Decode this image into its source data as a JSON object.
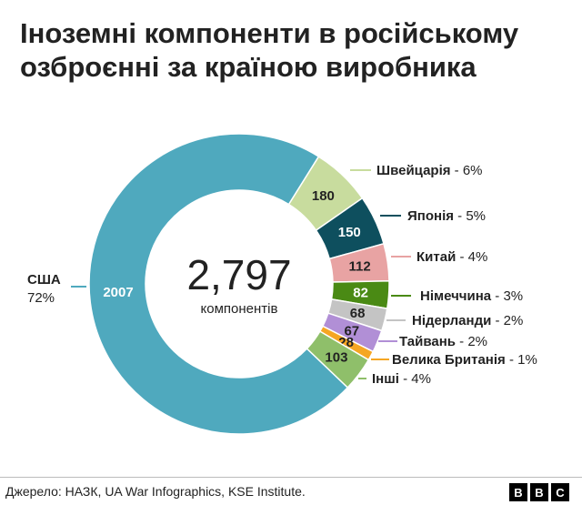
{
  "title": "Іноземні компоненти в російському озброєнні за країною виробника",
  "source": "Джерело: НАЗК, UA War Infographics, KSE Institute.",
  "logo": [
    "B",
    "B",
    "C"
  ],
  "chart_data": {
    "type": "pie",
    "donut": true,
    "total_value": "2,797",
    "total_label": "компонентів",
    "slices": [
      {
        "label": "США",
        "value": 2007,
        "percent": "72%",
        "color": "#4fa9be"
      },
      {
        "label": "Швейцарія",
        "value": 180,
        "percent": "6%",
        "color": "#c8dc9e"
      },
      {
        "label": "Японія",
        "value": 150,
        "percent": "5%",
        "color": "#0e4f5e"
      },
      {
        "label": "Китай",
        "value": 112,
        "percent": "4%",
        "color": "#e8a3a3"
      },
      {
        "label": "Німеччина",
        "value": 82,
        "percent": "3%",
        "color": "#4a8a14"
      },
      {
        "label": "Нідерланди",
        "value": 68,
        "percent": "2%",
        "color": "#c4c4c4"
      },
      {
        "label": "Тайвань",
        "value": 67,
        "percent": "2%",
        "color": "#b18fd6"
      },
      {
        "label": "Велика Британія",
        "value": 28,
        "percent": "1%",
        "color": "#f5a623"
      },
      {
        "label": "Інші",
        "value": 103,
        "percent": "4%",
        "color": "#8fbf6a"
      }
    ]
  }
}
